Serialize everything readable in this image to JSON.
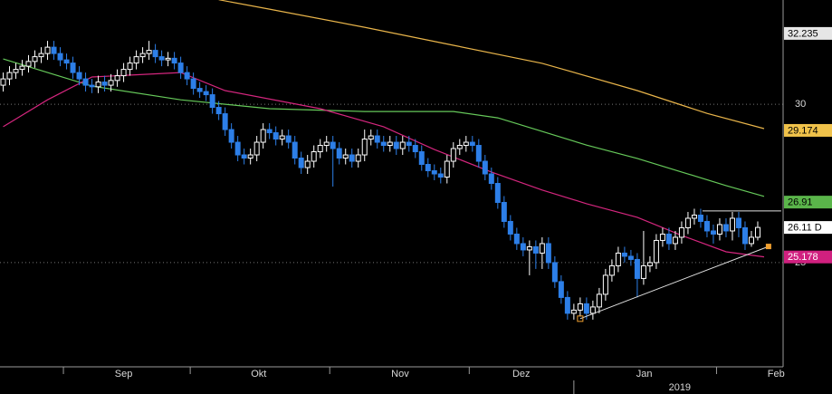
{
  "chart_data": {
    "type": "candlestick",
    "open": [
      30.6,
      30.8,
      31.0,
      31.1,
      31.2,
      31.35,
      31.5,
      31.6,
      31.8,
      31.6,
      31.4,
      31.3,
      31.0,
      30.8,
      30.6,
      30.55,
      30.7,
      30.6,
      30.75,
      30.9,
      31.1,
      31.3,
      31.5,
      31.6,
      31.7,
      31.5,
      31.4,
      31.45,
      31.3,
      31.0,
      30.8,
      30.5,
      30.4,
      30.3,
      29.9,
      29.7,
      29.2,
      28.8,
      28.4,
      28.3,
      28.4,
      28.8,
      29.2,
      29.1,
      28.9,
      29.0,
      28.8,
      28.3,
      28.0,
      28.2,
      28.5,
      28.7,
      28.8,
      28.6,
      28.3,
      28.4,
      28.2,
      28.4,
      28.9,
      29.0,
      28.8,
      28.7,
      28.8,
      28.6,
      28.8,
      28.7,
      28.5,
      28.1,
      27.9,
      27.8,
      27.7,
      28.2,
      28.6,
      28.7,
      28.8,
      28.7,
      28.2,
      27.8,
      27.5,
      26.9,
      26.3,
      25.9,
      25.6,
      25.4,
      25.5,
      25.3,
      25.6,
      25.0,
      24.4,
      23.9,
      23.4,
      23.5,
      23.7,
      23.4,
      23.6,
      24.0,
      24.6,
      24.9,
      25.3,
      25.2,
      25.1,
      24.5,
      24.9,
      25.0,
      25.7,
      25.9,
      25.6,
      25.8,
      26.1,
      26.4,
      26.5,
      26.3,
      26.0,
      25.9,
      26.2,
      26.0,
      26.4,
      26.1,
      25.6,
      25.8
    ],
    "high": [
      31.0,
      31.2,
      31.3,
      31.4,
      31.55,
      31.7,
      31.8,
      32.0,
      32.0,
      31.8,
      31.6,
      31.5,
      31.2,
      31.0,
      30.8,
      30.9,
      30.9,
      30.95,
      31.1,
      31.3,
      31.5,
      31.7,
      31.8,
      32.0,
      31.9,
      31.7,
      31.65,
      31.65,
      31.5,
      31.2,
      31.0,
      30.7,
      30.6,
      30.5,
      30.1,
      29.9,
      29.4,
      29.0,
      28.6,
      28.6,
      29.0,
      29.4,
      29.4,
      29.3,
      29.2,
      29.2,
      29.0,
      28.5,
      28.4,
      28.7,
      28.9,
      29.0,
      29.0,
      28.8,
      28.6,
      28.6,
      28.6,
      29.2,
      29.2,
      29.2,
      29.0,
      29.0,
      29.0,
      29.0,
      29.0,
      28.9,
      28.7,
      28.3,
      28.1,
      28.0,
      28.4,
      28.8,
      28.9,
      29.0,
      29.0,
      28.9,
      28.4,
      28.0,
      27.7,
      27.1,
      26.5,
      26.1,
      25.8,
      25.7,
      25.7,
      25.8,
      25.8,
      25.2,
      24.6,
      24.1,
      23.7,
      23.9,
      23.9,
      23.8,
      24.2,
      24.8,
      25.1,
      25.5,
      25.5,
      25.4,
      25.3,
      26.0,
      25.2,
      25.9,
      26.1,
      26.1,
      26.0,
      26.3,
      26.6,
      26.7,
      26.7,
      26.5,
      26.2,
      26.4,
      26.4,
      26.6,
      26.6,
      26.3,
      26.0,
      26.3
    ],
    "low": [
      30.4,
      30.6,
      30.8,
      30.9,
      31.0,
      31.15,
      31.3,
      31.4,
      31.4,
      31.2,
      31.1,
      30.8,
      30.6,
      30.4,
      30.35,
      30.35,
      30.4,
      30.4,
      30.55,
      30.7,
      30.9,
      31.1,
      31.3,
      31.4,
      31.3,
      31.2,
      31.2,
      31.1,
      30.8,
      30.6,
      30.3,
      30.2,
      30.1,
      29.7,
      29.5,
      29.0,
      28.6,
      28.2,
      28.1,
      28.1,
      28.2,
      28.6,
      28.9,
      28.7,
      28.7,
      28.6,
      28.1,
      27.8,
      27.8,
      28.0,
      28.3,
      28.5,
      27.4,
      28.1,
      28.1,
      28.0,
      28.0,
      28.2,
      28.7,
      28.6,
      28.5,
      28.5,
      28.4,
      28.4,
      28.5,
      28.3,
      27.9,
      27.7,
      27.6,
      27.5,
      27.5,
      28.0,
      28.4,
      28.5,
      28.5,
      28.0,
      27.6,
      27.3,
      26.7,
      26.1,
      25.7,
      25.4,
      25.2,
      24.6,
      24.8,
      24.8,
      24.8,
      24.2,
      23.7,
      23.2,
      23.2,
      23.3,
      23.2,
      23.2,
      23.4,
      23.8,
      24.4,
      24.7,
      25.0,
      24.9,
      23.9,
      24.3,
      24.7,
      24.8,
      25.5,
      25.4,
      25.4,
      25.6,
      25.9,
      26.2,
      26.1,
      25.8,
      25.6,
      25.7,
      25.8,
      25.7,
      25.8,
      25.4,
      25.5,
      25.7
    ],
    "close": [
      30.8,
      31.0,
      31.1,
      31.2,
      31.35,
      31.5,
      31.6,
      31.8,
      31.6,
      31.4,
      31.3,
      31.0,
      30.8,
      30.6,
      30.55,
      30.7,
      30.6,
      30.75,
      30.9,
      31.1,
      31.3,
      31.5,
      31.6,
      31.7,
      31.5,
      31.4,
      31.45,
      31.3,
      31.0,
      30.8,
      30.5,
      30.4,
      30.3,
      29.9,
      29.7,
      29.2,
      28.8,
      28.4,
      28.3,
      28.4,
      28.8,
      29.2,
      29.1,
      28.9,
      29.0,
      28.8,
      28.3,
      28.0,
      28.2,
      28.5,
      28.7,
      28.8,
      28.6,
      28.3,
      28.4,
      28.2,
      28.4,
      28.9,
      29.0,
      28.8,
      28.7,
      28.8,
      28.6,
      28.8,
      28.7,
      28.5,
      28.1,
      27.9,
      27.8,
      27.7,
      28.2,
      28.6,
      28.7,
      28.8,
      28.7,
      28.2,
      27.8,
      27.5,
      26.9,
      26.3,
      25.9,
      25.6,
      25.4,
      25.5,
      25.3,
      25.6,
      25.0,
      24.4,
      23.9,
      23.4,
      23.5,
      23.7,
      23.4,
      23.6,
      24.0,
      24.6,
      24.9,
      25.3,
      25.2,
      25.1,
      24.5,
      24.9,
      25.0,
      25.7,
      25.9,
      25.6,
      25.8,
      26.1,
      26.4,
      26.5,
      26.3,
      26.0,
      25.9,
      26.2,
      26.0,
      26.4,
      26.1,
      25.6,
      25.8,
      26.11
    ],
    "up_color": "#ffffff",
    "down_color": "#2d7fe8",
    "series": [
      {
        "color": "#e8b44a",
        "x": [
          34,
          42,
          57,
          71,
          85,
          100,
          111,
          120
        ],
        "values": [
          33.3,
          33.0,
          32.43,
          31.86,
          31.29,
          30.43,
          29.71,
          29.23
        ]
      },
      {
        "color": "#66c95a",
        "x": [
          0,
          14,
          28,
          42,
          57,
          71,
          78,
          85,
          92,
          100,
          107,
          114,
          120
        ],
        "values": [
          31.43,
          30.57,
          30.14,
          29.86,
          29.77,
          29.77,
          29.57,
          29.14,
          28.71,
          28.29,
          27.86,
          27.43,
          27.09
        ]
      },
      {
        "color": "#d4267e",
        "x": [
          0,
          7,
          14,
          28,
          35,
          50,
          60,
          68,
          77,
          85,
          92,
          100,
          107,
          114,
          120
        ],
        "values": [
          29.29,
          30.14,
          30.86,
          31.0,
          30.43,
          29.86,
          29.29,
          28.57,
          27.86,
          27.29,
          26.86,
          26.43,
          25.86,
          25.34,
          25.18
        ]
      }
    ],
    "trendlines": [
      {
        "color": "#e0e0e0",
        "x": [
          91,
          120.7
        ],
        "y": [
          23.23,
          25.51
        ]
      },
      {
        "color": "#e0e0e0",
        "x": [
          110.3,
          122.7
        ],
        "y": [
          26.63,
          26.63
        ]
      }
    ],
    "price_labels": [
      {
        "value": 32.235,
        "label": "32.235",
        "color": "#e6e6e6",
        "text_color": "#000000"
      },
      {
        "value": 29.174,
        "label": "29.174",
        "color": "#f0c24a",
        "text_color": "#000000"
      },
      {
        "value": 26.91,
        "label": "26.91",
        "color": "#5ab54a",
        "text_color": "#000000"
      },
      {
        "value": 26.11,
        "label": "26.11 D",
        "color": "#ffffff",
        "text_color": "#000000"
      },
      {
        "value": 25.178,
        "label": "25.178",
        "color": "#d0207f",
        "text_color": "#ffffff"
      }
    ],
    "xlim": [
      -0.5,
      123
    ],
    "xticks": [
      {
        "value": 19,
        "label": "Sep"
      },
      {
        "value": 40.3,
        "label": "Okt"
      },
      {
        "value": 62.6,
        "label": "Nov"
      },
      {
        "value": 81.7,
        "label": "Dez"
      },
      {
        "value": 101.1,
        "label": "Jan"
      },
      {
        "value": 121.9,
        "label": "Feb"
      }
    ],
    "xticks_minor": [
      9.5,
      29.5,
      51.5,
      73.5,
      112.5
    ],
    "xticks2": [
      {
        "value": 106.7,
        "label": "2019"
      }
    ],
    "xticks2_minor": [
      90
    ],
    "ylim": [
      21.71,
      33.29
    ],
    "yticks": [
      30,
      25
    ],
    "grid": true
  }
}
